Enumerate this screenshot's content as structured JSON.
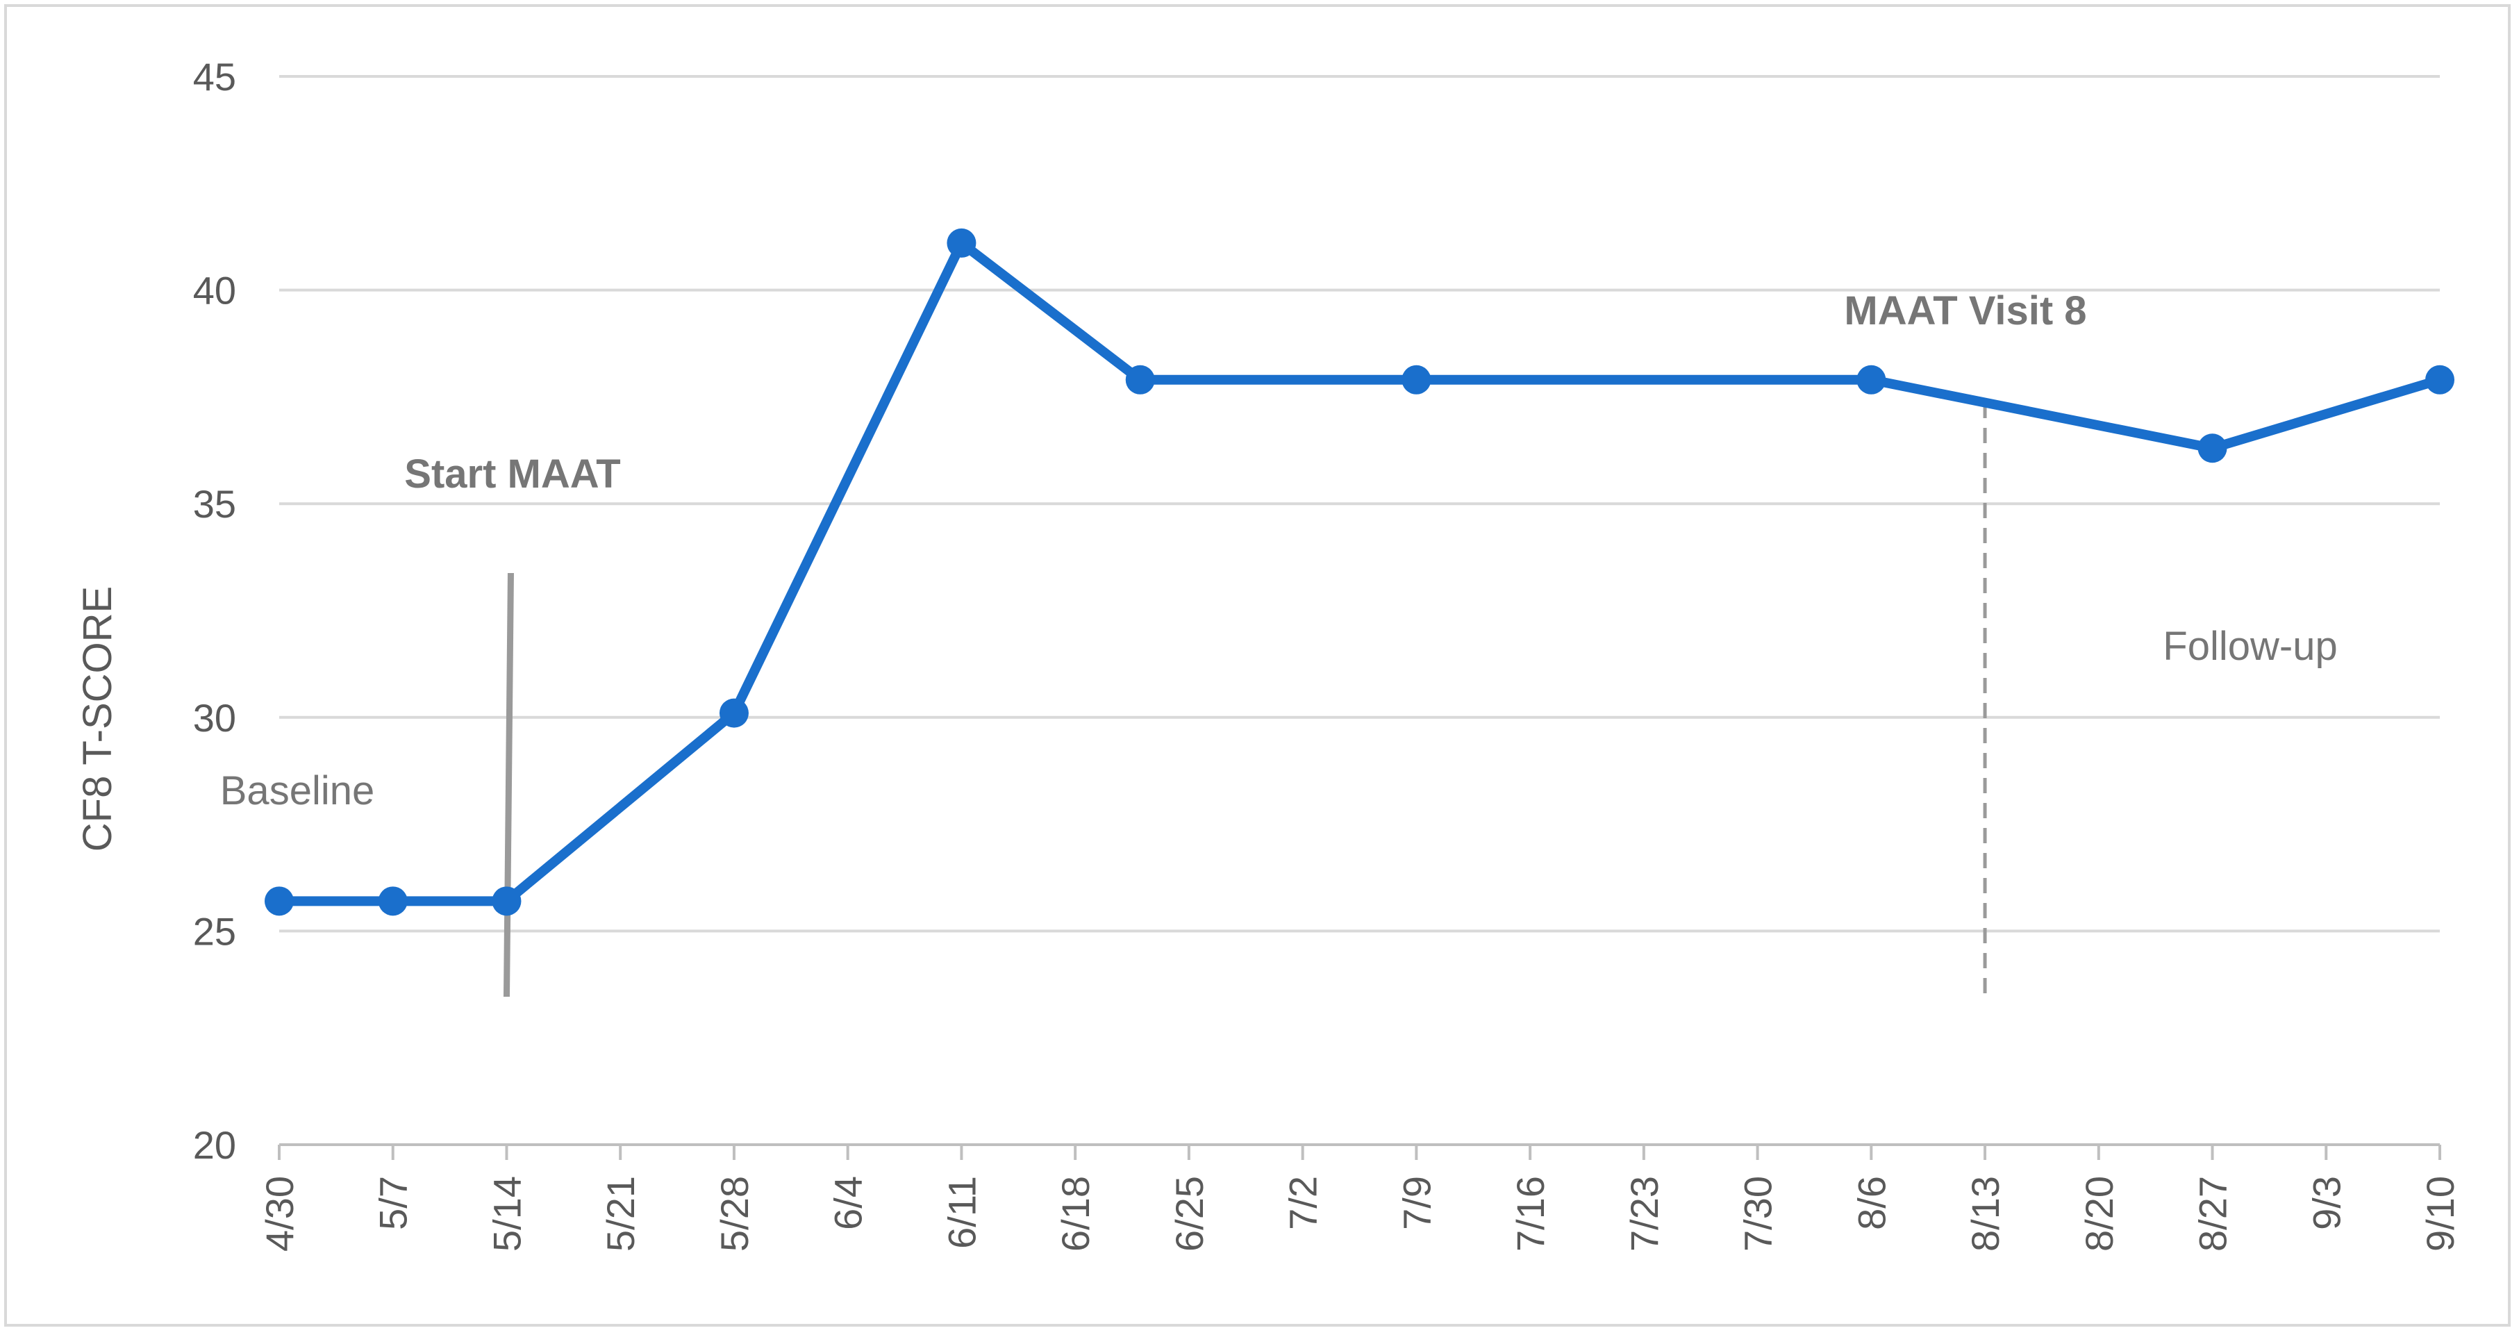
{
  "chart_data": {
    "type": "line",
    "title": "",
    "xlabel": "",
    "ylabel": "CF8 T-SCORE",
    "ylim": [
      20,
      45
    ],
    "yticks": [
      "20",
      "25",
      "30",
      "35",
      "40",
      "45"
    ],
    "categories": [
      "4/30",
      "5/7",
      "5/14",
      "5/21",
      "5/28",
      "6/4",
      "6/11",
      "6/18",
      "6/25",
      "7/2",
      "7/9",
      "7/16",
      "7/23",
      "7/30",
      "8/6",
      "8/13",
      "8/20",
      "8/27",
      "9/3",
      "9/10"
    ],
    "grid": true,
    "legend": "none",
    "series": [
      {
        "color": "#1a6fcc",
        "points": [
          {
            "x": "4/30",
            "y": 25.7
          },
          {
            "x": "5/7",
            "y": 25.7
          },
          {
            "x": "5/14",
            "y": 25.7
          },
          {
            "x": "5/28",
            "y": 30.1
          },
          {
            "x": "6/11",
            "y": 41.1
          },
          {
            "x": "6/22",
            "y": 37.9
          },
          {
            "x": "7/9",
            "y": 37.9
          },
          {
            "x": "8/6",
            "y": 37.9
          },
          {
            "x": "8/27",
            "y": 36.3
          },
          {
            "x": "9/10",
            "y": 37.9
          }
        ]
      }
    ],
    "annotations": {
      "baseline": "Baseline",
      "start": "Start MAAT",
      "visit8": "MAAT Visit 8",
      "followup": "Follow-up"
    },
    "marker_lines": [
      {
        "at": "5/14",
        "style": "solid",
        "color": "#9a9a9a"
      },
      {
        "at": "8/13",
        "style": "dashed",
        "color": "#9a9a9a"
      }
    ]
  }
}
